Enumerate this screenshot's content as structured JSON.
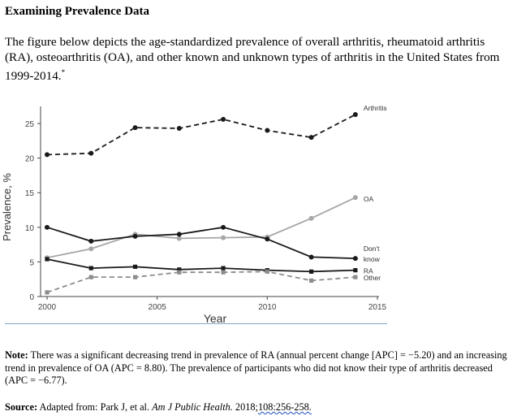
{
  "page": {
    "heading": "Examining Prevalence Data",
    "intro": "The figure below depicts the age-standardized prevalence of overall arthritis, rheumatoid arthritis (RA), osteoarthritis (OA), and other known and unknown types of arthritis in the United States from 1999-2014.",
    "intro_mark": "*",
    "note_label": "Note:",
    "note_text": " There was a significant decreasing trend in prevalence of RA (annual percent change [APC] = −5.20) and an increasing trend in prevalence of OA (APC = 8.80). The prevalence of participants who did not know their type of arthritis decreased (APC = −6.77).",
    "source_label": "Source:",
    "source_prefix": " Adapted from: Park J, et al. ",
    "source_journal": "Am J Public Health.",
    "source_year": " 2018;",
    "source_pages": "108:256-258."
  },
  "chart_data": {
    "type": "line",
    "title": "",
    "xlabel": "Year",
    "ylabel": "Prevalence, %",
    "xlim": [
      2000,
      2015
    ],
    "ylim": [
      0,
      27
    ],
    "xticks": [
      2000,
      2005,
      2010,
      2015
    ],
    "yticks": [
      0,
      5,
      10,
      15,
      20,
      25
    ],
    "grid": false,
    "legend": "labels at line ends",
    "series": [
      {
        "name": "Arthritis",
        "style": "dashed",
        "color": "#1a1a1a",
        "marker": "circle",
        "x": [
          2000,
          2002,
          2004,
          2006,
          2008,
          2010,
          2012,
          2014
        ],
        "y": [
          20.5,
          20.7,
          24.4,
          24.3,
          25.6,
          24.0,
          23.0,
          26.3
        ]
      },
      {
        "name": "OA",
        "style": "solid",
        "color": "#a6a6a6",
        "marker": "circle",
        "x": [
          2000,
          2002,
          2004,
          2006,
          2008,
          2010,
          2012,
          2014
        ],
        "y": [
          5.6,
          6.9,
          9.0,
          8.4,
          8.5,
          8.6,
          11.3,
          14.3
        ]
      },
      {
        "name": "Don't know",
        "style": "solid",
        "color": "#1a1a1a",
        "marker": "circle",
        "x": [
          2000,
          2002,
          2004,
          2006,
          2008,
          2010,
          2012,
          2014
        ],
        "y": [
          10.0,
          8.0,
          8.7,
          9.0,
          10.0,
          8.3,
          5.7,
          5.5
        ]
      },
      {
        "name": "RA",
        "style": "solid",
        "color": "#1a1a1a",
        "marker": "square",
        "x": [
          2000,
          2002,
          2004,
          2006,
          2008,
          2010,
          2012,
          2014
        ],
        "y": [
          5.4,
          4.1,
          4.3,
          3.9,
          4.1,
          3.8,
          3.6,
          3.8
        ]
      },
      {
        "name": "Other",
        "style": "dashed",
        "color": "#8c8c8c",
        "marker": "square",
        "x": [
          2000,
          2002,
          2004,
          2006,
          2008,
          2010,
          2012,
          2014
        ],
        "y": [
          0.6,
          2.8,
          2.8,
          3.5,
          3.5,
          3.6,
          2.3,
          2.8
        ]
      }
    ],
    "end_labels": [
      "Arthritis",
      "OA",
      "Don't",
      "know",
      "RA",
      "Other"
    ]
  }
}
